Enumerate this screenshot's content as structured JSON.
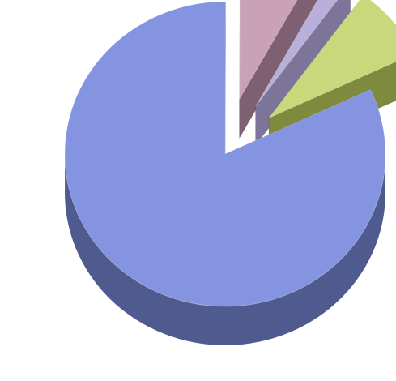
{
  "chart_data": {
    "type": "pie",
    "title": "",
    "three_d": true,
    "exploded": true,
    "legend": "none",
    "slices": [
      {
        "value": 82.0,
        "color": "#8494E0",
        "side_color": "#4F5A8F"
      },
      {
        "value": 8.0,
        "color": "#C9A2B8",
        "side_color": "#7E6072"
      },
      {
        "value": 2.0,
        "color": "#B8B0DA",
        "side_color": "#7D7499"
      },
      {
        "value": 8.0,
        "color": "#C8D87A",
        "side_color": "#7E8B3E"
      }
    ],
    "start_angle_deg": -25,
    "explode_index_from": 1
  }
}
